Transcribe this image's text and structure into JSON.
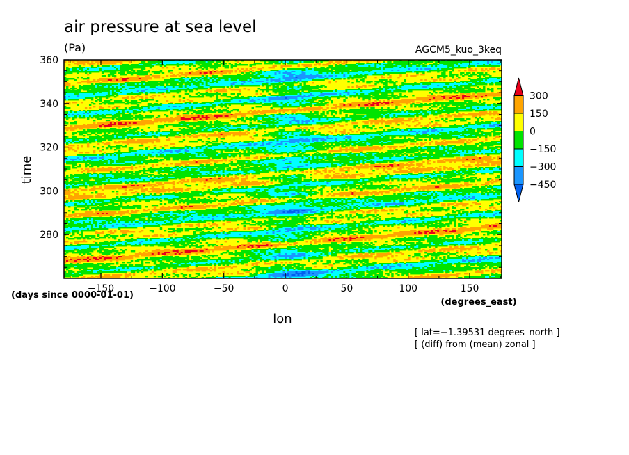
{
  "chart_data": {
    "type": "heatmap",
    "title": "air pressure at sea level",
    "units": "(Pa)",
    "model_label": "AGCM5_kuo_3keq",
    "xlabel": "lon",
    "xunits": "(degrees_east)",
    "ylabel": "time",
    "yunits": "(days since 0000-01-01)",
    "xlim": [
      -180,
      176
    ],
    "ylim": [
      260,
      360
    ],
    "x_ticks": [
      -150,
      -100,
      -50,
      0,
      50,
      100,
      150
    ],
    "y_ticks": [
      280,
      300,
      320,
      340,
      360
    ],
    "colorbar": {
      "levels": [
        300,
        150,
        0,
        -150,
        -300,
        -450
      ],
      "level_labels": [
        "300",
        "150",
        "0",
        "−150",
        "−300",
        "−450"
      ],
      "colors": [
        "#e8001a",
        "#ffa500",
        "#ffff00",
        "#00e400",
        "#00ffff",
        "#1a96ff",
        "#0060f0"
      ]
    },
    "notes": [
      "[ lat=−1.39531 degrees_north ]",
      "[ (diff) from (mean) zonal ]"
    ]
  }
}
